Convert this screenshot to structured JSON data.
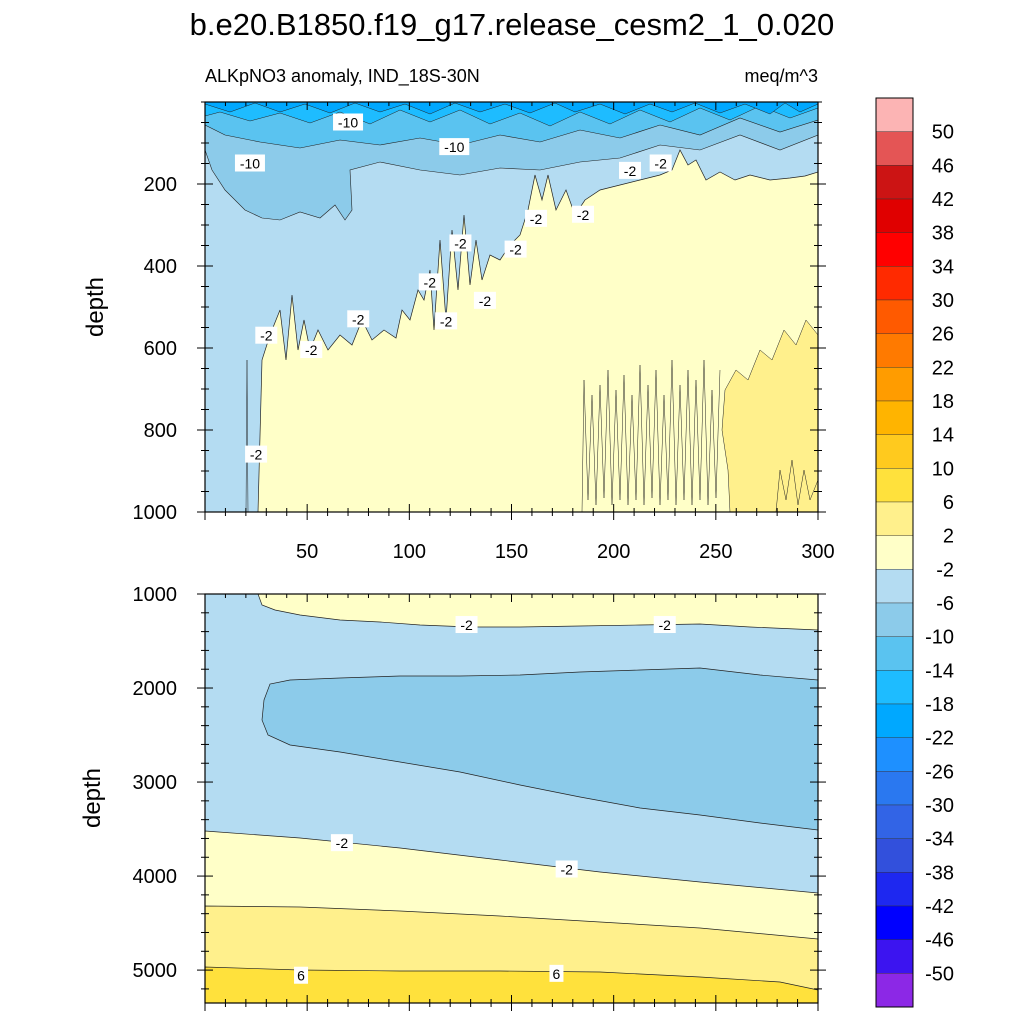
{
  "title": "b.e20.B1850.f19_g17.release_cesm2_1_0.020",
  "chart_data": {
    "type": "contour",
    "variable_label": "ALKpNO3 anomaly, IND_18S-30N",
    "units": "meq/m^3",
    "ylabel": "depth",
    "y_reversed": true,
    "colorbar": {
      "levels": [
        50,
        46,
        42,
        38,
        34,
        30,
        26,
        22,
        18,
        14,
        10,
        6,
        2,
        -2,
        -6,
        -10,
        -14,
        -18,
        -22,
        -26,
        -30,
        -34,
        -38,
        -42,
        -46,
        -50
      ],
      "colors": [
        "#fcb4b4",
        "#e45555",
        "#cc1414",
        "#e00000",
        "#ff0000",
        "#ff2a00",
        "#ff5a00",
        "#ff7a00",
        "#ff9c00",
        "#ffb400",
        "#ffca1e",
        "#ffe13c",
        "#fff08c",
        "#ffffc8",
        "#b4dcf2",
        "#8ccbea",
        "#5ac3f0",
        "#1ebcff",
        "#00a8ff",
        "#1e90ff",
        "#2a78f0",
        "#3264e6",
        "#3250dc",
        "#1e28f0",
        "#0000ff",
        "#3c14f0",
        "#8c28e6"
      ]
    },
    "panels": [
      {
        "name": "upper",
        "xlim": [
          0,
          300
        ],
        "ylim": [
          1000,
          0
        ],
        "xticks": [
          50,
          100,
          150,
          200,
          250,
          300
        ],
        "yticks": [
          200,
          400,
          600,
          800,
          1000
        ],
        "contour_labels": [
          {
            "text": "-10",
            "x": 70,
            "y": 50
          },
          {
            "text": "-10",
            "x": 122,
            "y": 110
          },
          {
            "text": "-10",
            "x": 22,
            "y": 150
          },
          {
            "text": "-2",
            "x": 223,
            "y": 150
          },
          {
            "text": "-2",
            "x": 208,
            "y": 168
          },
          {
            "text": "-2",
            "x": 185,
            "y": 275
          },
          {
            "text": "-2",
            "x": 162,
            "y": 285
          },
          {
            "text": "-2",
            "x": 125,
            "y": 345
          },
          {
            "text": "-2",
            "x": 152,
            "y": 360
          },
          {
            "text": "-2",
            "x": 110,
            "y": 440
          },
          {
            "text": "-2",
            "x": 137,
            "y": 485
          },
          {
            "text": "-2",
            "x": 75,
            "y": 530
          },
          {
            "text": "-2",
            "x": 118,
            "y": 535
          },
          {
            "text": "-2",
            "x": 30,
            "y": 570
          },
          {
            "text": "-2",
            "x": 52,
            "y": 605
          },
          {
            "text": "-2",
            "x": 25,
            "y": 860
          }
        ]
      },
      {
        "name": "lower",
        "xlim": [
          0,
          300
        ],
        "ylim": [
          5350,
          1000
        ],
        "yticks": [
          1000,
          2000,
          3000,
          4000,
          5000
        ],
        "contour_labels": [
          {
            "text": "-2",
            "x": 128,
            "y": 1330
          },
          {
            "text": "-2",
            "x": 225,
            "y": 1330
          },
          {
            "text": "-2",
            "x": 67,
            "y": 3650
          },
          {
            "text": "-2",
            "x": 177,
            "y": 3930
          },
          {
            "text": "6",
            "x": 47,
            "y": 5060
          },
          {
            "text": "6",
            "x": 172,
            "y": 5040
          }
        ]
      }
    ]
  }
}
